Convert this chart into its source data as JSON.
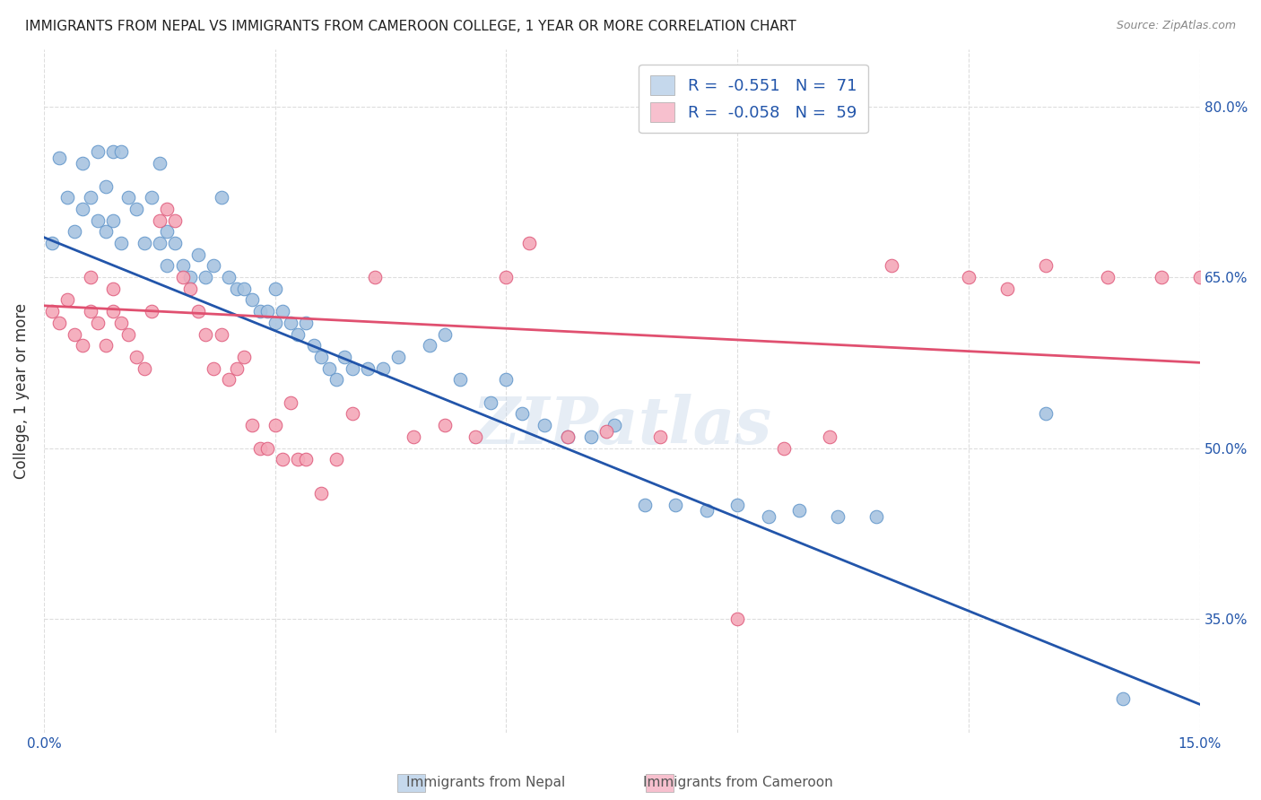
{
  "title": "IMMIGRANTS FROM NEPAL VS IMMIGRANTS FROM CAMEROON COLLEGE, 1 YEAR OR MORE CORRELATION CHART",
  "source": "Source: ZipAtlas.com",
  "ylabel": "College, 1 year or more",
  "xmin": 0.0,
  "xmax": 0.15,
  "ymin": 0.25,
  "ymax": 0.85,
  "yticks": [
    0.35,
    0.5,
    0.65,
    0.8
  ],
  "ytick_labels": [
    "35.0%",
    "50.0%",
    "65.0%",
    "80.0%"
  ],
  "xticks": [
    0.0,
    0.03,
    0.06,
    0.09,
    0.12,
    0.15
  ],
  "xtick_labels": [
    "0.0%",
    "",
    "",
    "",
    "",
    "15.0%"
  ],
  "nepal_color": "#a8c4e0",
  "cameroon_color": "#f4a8b8",
  "nepal_edge": "#6699cc",
  "cameroon_edge": "#e06080",
  "trendline_nepal_color": "#2255aa",
  "trendline_cameroon_color": "#e05070",
  "legend_box_nepal": "#c5d8ec",
  "legend_box_cameroon": "#f7c0ce",
  "R_nepal": -0.551,
  "N_nepal": 71,
  "R_cameroon": -0.058,
  "N_cameroon": 59,
  "trendline_nepal_x0": 0.0,
  "trendline_nepal_y0": 0.685,
  "trendline_nepal_x1": 0.15,
  "trendline_nepal_y1": 0.275,
  "trendline_cameroon_x0": 0.0,
  "trendline_cameroon_y0": 0.625,
  "trendline_cameroon_x1": 0.15,
  "trendline_cameroon_y1": 0.575,
  "nepal_x": [
    0.001,
    0.002,
    0.003,
    0.004,
    0.005,
    0.005,
    0.006,
    0.007,
    0.007,
    0.008,
    0.008,
    0.009,
    0.009,
    0.01,
    0.01,
    0.011,
    0.012,
    0.013,
    0.014,
    0.015,
    0.015,
    0.016,
    0.016,
    0.017,
    0.018,
    0.019,
    0.02,
    0.021,
    0.022,
    0.023,
    0.024,
    0.025,
    0.026,
    0.027,
    0.028,
    0.029,
    0.03,
    0.03,
    0.031,
    0.032,
    0.033,
    0.034,
    0.035,
    0.036,
    0.037,
    0.038,
    0.039,
    0.04,
    0.042,
    0.044,
    0.046,
    0.05,
    0.052,
    0.054,
    0.058,
    0.06,
    0.062,
    0.065,
    0.068,
    0.071,
    0.074,
    0.078,
    0.082,
    0.086,
    0.09,
    0.094,
    0.098,
    0.103,
    0.108,
    0.13,
    0.14
  ],
  "nepal_y": [
    0.68,
    0.755,
    0.72,
    0.69,
    0.75,
    0.71,
    0.72,
    0.7,
    0.76,
    0.73,
    0.69,
    0.76,
    0.7,
    0.68,
    0.76,
    0.72,
    0.71,
    0.68,
    0.72,
    0.68,
    0.75,
    0.69,
    0.66,
    0.68,
    0.66,
    0.65,
    0.67,
    0.65,
    0.66,
    0.72,
    0.65,
    0.64,
    0.64,
    0.63,
    0.62,
    0.62,
    0.64,
    0.61,
    0.62,
    0.61,
    0.6,
    0.61,
    0.59,
    0.58,
    0.57,
    0.56,
    0.58,
    0.57,
    0.57,
    0.57,
    0.58,
    0.59,
    0.6,
    0.56,
    0.54,
    0.56,
    0.53,
    0.52,
    0.51,
    0.51,
    0.52,
    0.45,
    0.45,
    0.445,
    0.45,
    0.44,
    0.445,
    0.44,
    0.44,
    0.53,
    0.28
  ],
  "cameroon_x": [
    0.001,
    0.002,
    0.003,
    0.004,
    0.005,
    0.006,
    0.006,
    0.007,
    0.008,
    0.009,
    0.009,
    0.01,
    0.011,
    0.012,
    0.013,
    0.014,
    0.015,
    0.016,
    0.017,
    0.018,
    0.019,
    0.02,
    0.021,
    0.022,
    0.023,
    0.024,
    0.025,
    0.026,
    0.027,
    0.028,
    0.029,
    0.03,
    0.031,
    0.032,
    0.033,
    0.034,
    0.036,
    0.038,
    0.04,
    0.043,
    0.048,
    0.052,
    0.056,
    0.06,
    0.063,
    0.068,
    0.073,
    0.08,
    0.085,
    0.09,
    0.096,
    0.102,
    0.11,
    0.12,
    0.125,
    0.13,
    0.138,
    0.145,
    0.15
  ],
  "cameroon_y": [
    0.62,
    0.61,
    0.63,
    0.6,
    0.59,
    0.62,
    0.65,
    0.61,
    0.59,
    0.62,
    0.64,
    0.61,
    0.6,
    0.58,
    0.57,
    0.62,
    0.7,
    0.71,
    0.7,
    0.65,
    0.64,
    0.62,
    0.6,
    0.57,
    0.6,
    0.56,
    0.57,
    0.58,
    0.52,
    0.5,
    0.5,
    0.52,
    0.49,
    0.54,
    0.49,
    0.49,
    0.46,
    0.49,
    0.53,
    0.65,
    0.51,
    0.52,
    0.51,
    0.65,
    0.68,
    0.51,
    0.515,
    0.51,
    0.79,
    0.35,
    0.5,
    0.51,
    0.66,
    0.65,
    0.64,
    0.66,
    0.65,
    0.65,
    0.65
  ],
  "watermark": "ZIPatlas",
  "grid_color": "#dddddd",
  "background_color": "#ffffff"
}
